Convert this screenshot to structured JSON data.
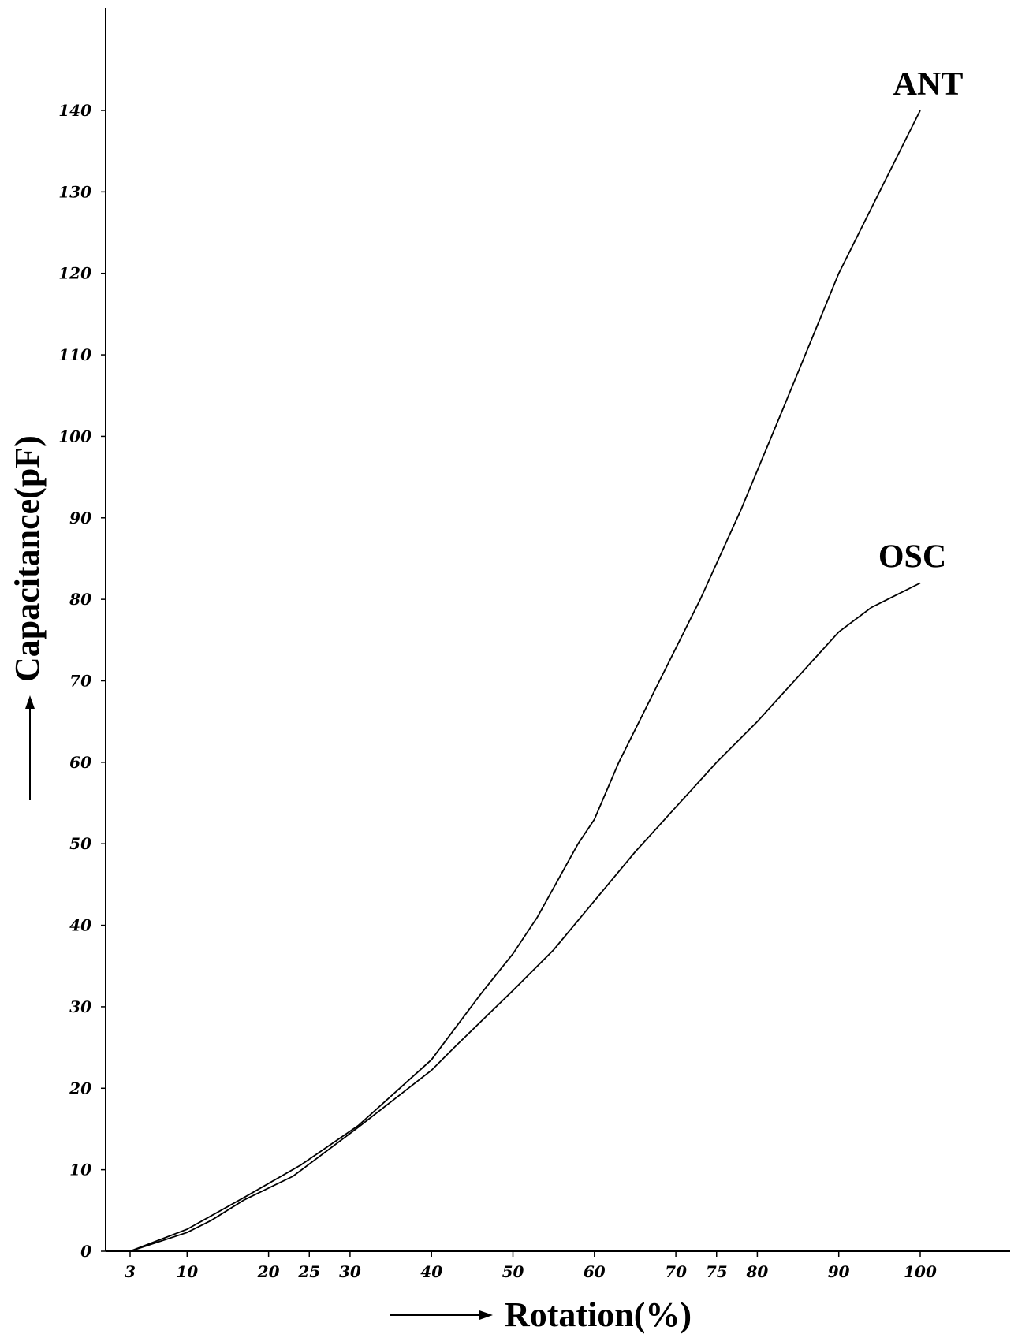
{
  "chart_data": {
    "type": "line",
    "xlabel": "Rotation(%)",
    "ylabel": "Capacitance(pF)",
    "xlim": [
      0,
      112
    ],
    "ylim": [
      0,
      153
    ],
    "x_ticks": [
      3,
      10,
      20,
      25,
      30,
      40,
      50,
      60,
      70,
      75,
      80,
      90,
      100
    ],
    "y_ticks": [
      0,
      10,
      20,
      30,
      40,
      50,
      60,
      70,
      80,
      90,
      100,
      110,
      120,
      130,
      140
    ],
    "grid": false,
    "series": [
      {
        "name": "ANT",
        "x": [
          3,
          10,
          17,
          24,
          31,
          40,
          46,
          50,
          53,
          58,
          60,
          63,
          68,
          73,
          78,
          83,
          90,
          100
        ],
        "y": [
          0,
          2.7,
          6.6,
          10.6,
          15.4,
          23.5,
          31.5,
          36.5,
          41,
          50,
          53,
          60,
          70,
          80,
          91,
          103,
          120,
          140
        ]
      },
      {
        "name": "OSC",
        "x": [
          3,
          10,
          13,
          17,
          23,
          31,
          40,
          43,
          50,
          55,
          60,
          65,
          70,
          75,
          80,
          85,
          90,
          94,
          100
        ],
        "y": [
          0,
          2.3,
          3.8,
          6.3,
          9.2,
          15.2,
          22.2,
          25.2,
          32,
          37,
          43,
          49,
          54.5,
          60,
          65,
          70.5,
          76,
          79,
          82
        ]
      }
    ]
  }
}
